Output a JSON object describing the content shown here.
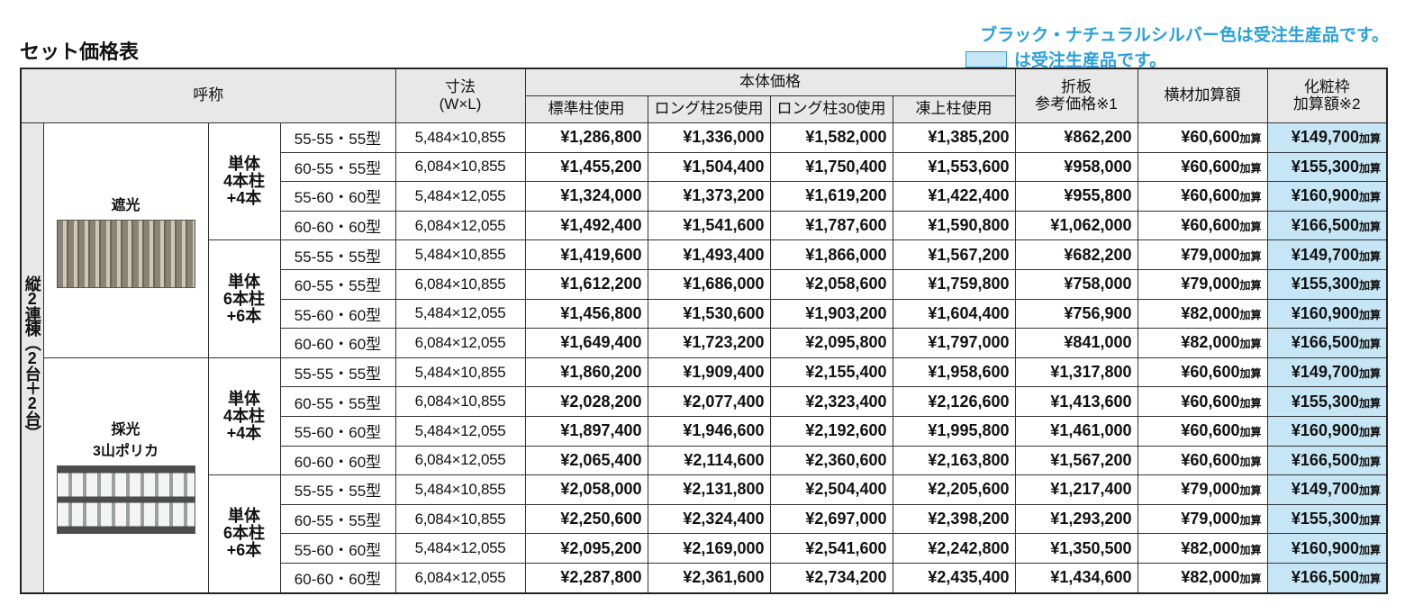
{
  "title": "セット価格表",
  "notes": {
    "line1": "ブラック・ナチュラルシルバー色は受注生産品です。",
    "line2": "は受注生産品です。"
  },
  "table": {
    "header": {
      "name": "呼称",
      "size": [
        "寸法",
        "(W×L)"
      ],
      "body_price": "本体価格",
      "body_cols": [
        "標準柱使用",
        "ロング柱25使用",
        "ロング柱30使用",
        "凍上柱使用"
      ],
      "folded": [
        "折板",
        "参考価格※1"
      ],
      "cross": "横材加算額",
      "frame": [
        "化粧枠",
        "加算額※2"
      ]
    },
    "group_label": "縦2連棟（2台＋2台）",
    "suffix": "加算",
    "sections": [
      {
        "name": [
          "遮光"
        ],
        "subgroups": [
          {
            "label": [
              "単体",
              "4本柱",
              "+4本"
            ],
            "rows": [
              [
                "55-55・55型",
                "5,484×10,855",
                "¥1,286,800",
                "¥1,336,000",
                "¥1,582,000",
                "¥1,385,200",
                "¥862,200",
                "¥60,600",
                "¥149,700"
              ],
              [
                "60-55・55型",
                "6,084×10,855",
                "¥1,455,200",
                "¥1,504,400",
                "¥1,750,400",
                "¥1,553,600",
                "¥958,000",
                "¥60,600",
                "¥155,300"
              ],
              [
                "55-60・60型",
                "5,484×12,055",
                "¥1,324,000",
                "¥1,373,200",
                "¥1,619,200",
                "¥1,422,400",
                "¥955,800",
                "¥60,600",
                "¥160,900"
              ],
              [
                "60-60・60型",
                "6,084×12,055",
                "¥1,492,400",
                "¥1,541,600",
                "¥1,787,600",
                "¥1,590,800",
                "¥1,062,000",
                "¥60,600",
                "¥166,500"
              ]
            ]
          },
          {
            "label": [
              "単体",
              "6本柱",
              "+6本"
            ],
            "rows": [
              [
                "55-55・55型",
                "5,484×10,855",
                "¥1,419,600",
                "¥1,493,400",
                "¥1,866,000",
                "¥1,567,200",
                "¥682,200",
                "¥79,000",
                "¥149,700"
              ],
              [
                "60-55・55型",
                "6,084×10,855",
                "¥1,612,200",
                "¥1,686,000",
                "¥2,058,600",
                "¥1,759,800",
                "¥758,000",
                "¥79,000",
                "¥155,300"
              ],
              [
                "55-60・60型",
                "5,484×12,055",
                "¥1,456,800",
                "¥1,530,600",
                "¥1,903,200",
                "¥1,604,400",
                "¥756,900",
                "¥82,000",
                "¥160,900"
              ],
              [
                "60-60・60型",
                "6,084×12,055",
                "¥1,649,400",
                "¥1,723,200",
                "¥2,095,800",
                "¥1,797,000",
                "¥841,000",
                "¥82,000",
                "¥166,500"
              ]
            ]
          }
        ]
      },
      {
        "name": [
          "採光",
          "3山ポリカ"
        ],
        "subgroups": [
          {
            "label": [
              "単体",
              "4本柱",
              "+4本"
            ],
            "rows": [
              [
                "55-55・55型",
                "5,484×10,855",
                "¥1,860,200",
                "¥1,909,400",
                "¥2,155,400",
                "¥1,958,600",
                "¥1,317,800",
                "¥60,600",
                "¥149,700"
              ],
              [
                "60-55・55型",
                "6,084×10,855",
                "¥2,028,200",
                "¥2,077,400",
                "¥2,323,400",
                "¥2,126,600",
                "¥1,413,600",
                "¥60,600",
                "¥155,300"
              ],
              [
                "55-60・60型",
                "5,484×12,055",
                "¥1,897,400",
                "¥1,946,600",
                "¥2,192,600",
                "¥1,995,800",
                "¥1,461,000",
                "¥60,600",
                "¥160,900"
              ],
              [
                "60-60・60型",
                "6,084×12,055",
                "¥2,065,400",
                "¥2,114,600",
                "¥2,360,600",
                "¥2,163,800",
                "¥1,567,200",
                "¥60,600",
                "¥166,500"
              ]
            ]
          },
          {
            "label": [
              "単体",
              "6本柱",
              "+6本"
            ],
            "rows": [
              [
                "55-55・55型",
                "5,484×10,855",
                "¥2,058,000",
                "¥2,131,800",
                "¥2,504,400",
                "¥2,205,600",
                "¥1,217,400",
                "¥79,000",
                "¥149,700"
              ],
              [
                "60-55・55型",
                "6,084×10,855",
                "¥2,250,600",
                "¥2,324,400",
                "¥2,697,000",
                "¥2,398,200",
                "¥1,293,200",
                "¥79,000",
                "¥155,300"
              ],
              [
                "55-60・60型",
                "5,484×12,055",
                "¥2,095,200",
                "¥2,169,000",
                "¥2,541,600",
                "¥2,242,800",
                "¥1,350,500",
                "¥82,000",
                "¥160,900"
              ],
              [
                "60-60・60型",
                "6,084×12,055",
                "¥2,287,800",
                "¥2,361,600",
                "¥2,734,200",
                "¥2,435,400",
                "¥1,434,600",
                "¥82,000",
                "¥166,500"
              ]
            ]
          }
        ]
      }
    ]
  }
}
